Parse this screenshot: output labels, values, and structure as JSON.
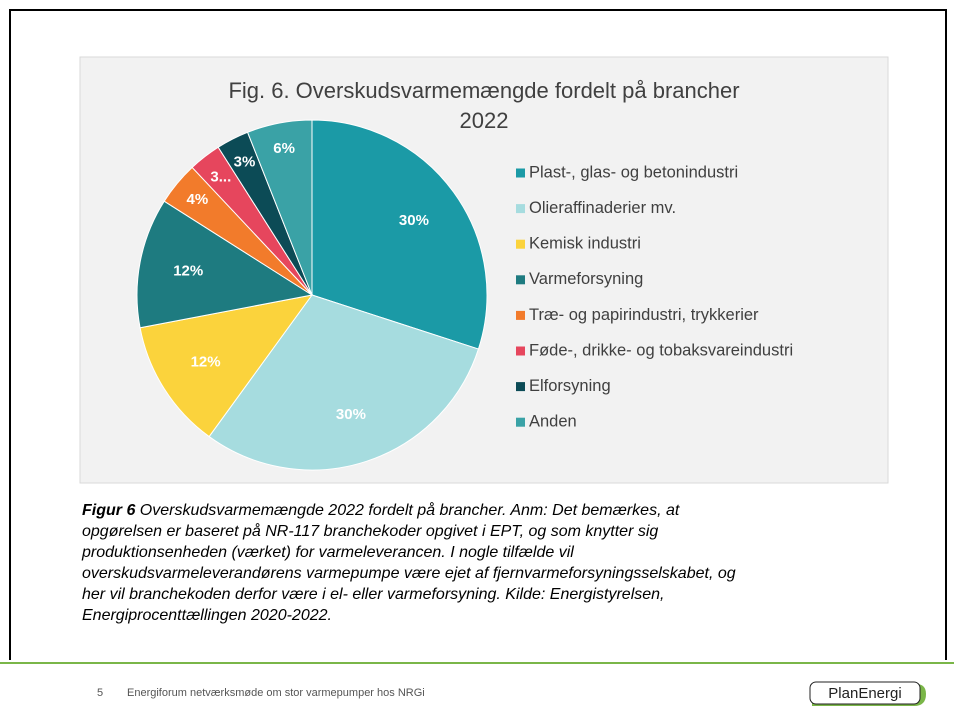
{
  "chart_data": {
    "type": "pie",
    "title": [
      "Fig. 6. Overskudsvarmemængde fordelt på brancher",
      "2022"
    ],
    "categories": [
      "Plast-, glas- og betonindustri",
      "Olieraffinaderier mv.",
      "Kemisk industri",
      "Varmeforsyning",
      "Træ- og papirindustri, trykkerier",
      "Føde-, drikke- og tobaksvareindustri",
      "Elforsyning",
      "Anden"
    ],
    "values": [
      30,
      30,
      12,
      12,
      4,
      3,
      3,
      6
    ],
    "value_labels": [
      "30%",
      "30%",
      "12%",
      "12%",
      "4%",
      "3...",
      "3%",
      "6%"
    ],
    "colors": [
      "#1b9aa6",
      "#a6dcdf",
      "#fbd33c",
      "#1e7b80",
      "#f27b2b",
      "#e6465d",
      "#0c4b56",
      "#3aa2a6"
    ],
    "legend": "right"
  },
  "caption": {
    "label": "Figur 6",
    "lines": [
      " Overskudsvarmemængde 2022 fordelt på brancher. Anm: Det bemærkes, at",
      "opgørelsen er baseret på NR-117 branchekoder opgivet i EPT, og som knytter sig",
      "produktionsenheden (værket) for varmeleverancen. I nogle tilfælde vil",
      "overskudsvarmeleverandørens varmepumpe være ejet af fjernvarmeforsyningsselskabet, og",
      "her vil branchekoden derfor være i el- eller varmeforsyning. Kilde: Energistyrelsen,",
      "Energiprocenttællingen 2020-2022."
    ]
  },
  "footer": {
    "page": "5",
    "text": "Energiforum netværksmøde om stor varmepumper hos NRGi",
    "logo": "PlanEnergi"
  }
}
